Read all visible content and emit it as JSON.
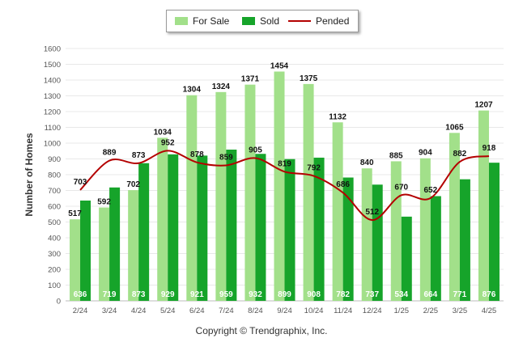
{
  "colors": {
    "for_sale": "#a2e08a",
    "sold": "#16a42a",
    "pended": "#b40000",
    "grid": "#e8e8e8",
    "axis_text": "#555555"
  },
  "legend": {
    "for_sale": "For Sale",
    "sold": "Sold",
    "pended": "Pended"
  },
  "copyright": "Copyright © Trendgraphix, Inc.",
  "chart_data": {
    "type": "bar",
    "title": "",
    "ylabel": "Number of Homes",
    "xlabel": "",
    "ylim": [
      0,
      1600
    ],
    "yticks": [
      0,
      100,
      200,
      300,
      400,
      500,
      600,
      700,
      800,
      900,
      1000,
      1100,
      1200,
      1300,
      1400,
      1500,
      1600
    ],
    "categories": [
      "2/24",
      "3/24",
      "4/24",
      "5/24",
      "6/24",
      "7/24",
      "8/24",
      "9/24",
      "10/24",
      "11/24",
      "12/24",
      "1/25",
      "2/25",
      "3/25",
      "4/25"
    ],
    "series": [
      {
        "name": "For Sale",
        "kind": "bar",
        "values": [
          517,
          592,
          702,
          1034,
          1304,
          1324,
          1371,
          1454,
          1375,
          1132,
          840,
          885,
          904,
          1065,
          1207
        ]
      },
      {
        "name": "Sold",
        "kind": "bar",
        "values": [
          636,
          719,
          873,
          929,
          921,
          959,
          932,
          899,
          908,
          782,
          737,
          534,
          664,
          771,
          876
        ]
      },
      {
        "name": "Pended",
        "kind": "line",
        "values": [
          703,
          889,
          873,
          952,
          878,
          859,
          905,
          819,
          792,
          686,
          512,
          670,
          652,
          882,
          918
        ]
      }
    ],
    "grid": true,
    "legend_position": "top-center"
  }
}
